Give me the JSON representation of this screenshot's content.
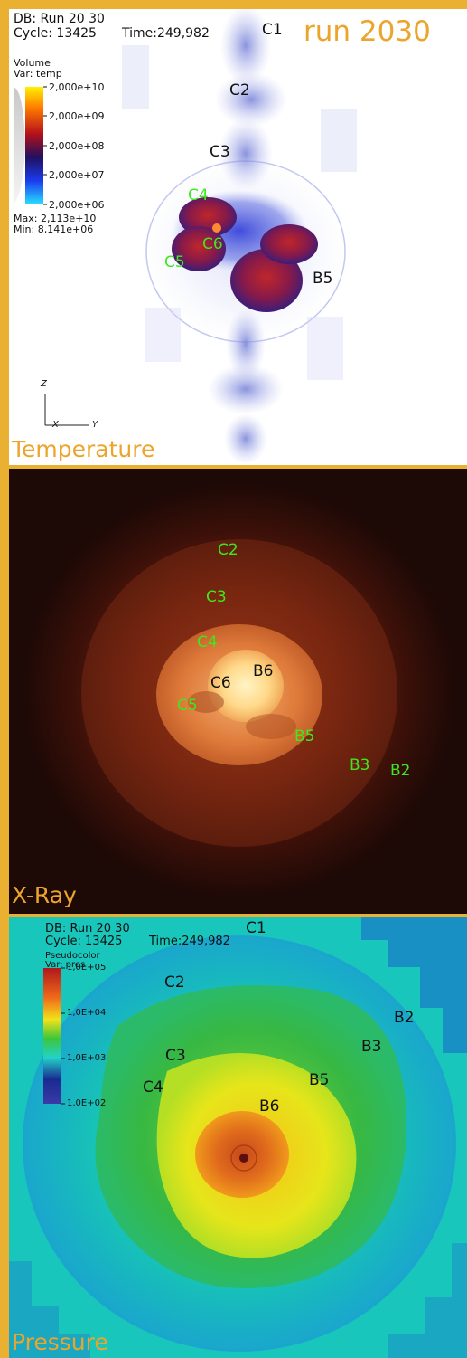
{
  "colors": {
    "frame": "#e9b031",
    "title_orange": "#eca52c",
    "label_black": "#111111",
    "label_green": "#3fe81c"
  },
  "temperature_panel": {
    "run_label": "run 2030",
    "title": "Temperature",
    "db_line": "DB: Run 20 30",
    "cycle_line": "Cycle: 13425",
    "time_line": "Time:249,982",
    "legend": {
      "type_label": "Volume",
      "var_label": "Var: temp",
      "ticks": [
        "2,000e+10",
        "2,000e+09",
        "2,000e+08",
        "2,000e+07",
        "2,000e+06"
      ],
      "max_label": "Max: 2,113e+10",
      "min_label": "Min: 8,141e+06"
    },
    "axes": {
      "z": "Z",
      "x": "X",
      "y": "Y"
    },
    "labels": {
      "c1": "C1",
      "c2": "C2",
      "c3": "C3",
      "c4": "C4",
      "c5": "C5",
      "c6": "C6",
      "b5": "B5"
    }
  },
  "xray_panel": {
    "title": "X-Ray",
    "labels": {
      "c2": "C2",
      "c3": "C3",
      "c4": "C4",
      "c5": "C5",
      "c6": "C6",
      "b6": "B6",
      "b5": "B5",
      "b3": "B3",
      "b2": "B2"
    }
  },
  "pressure_panel": {
    "title": "Pressure",
    "db_line": "DB: Run 20 30",
    "cycle_line": "Cycle: 13425",
    "time_line": "Time:249,982",
    "legend": {
      "type_label": "Pseudocolor",
      "var_label": "Var: pres",
      "ticks": [
        "1,0E+05",
        "1,0E+04",
        "1,0E+03",
        "1,0E+02"
      ]
    },
    "labels": {
      "c1": "C1",
      "c2": "C2",
      "c3": "C3",
      "c4": "C4",
      "b2": "B2",
      "b3": "B3",
      "b5": "B5",
      "b6": "B6"
    }
  }
}
